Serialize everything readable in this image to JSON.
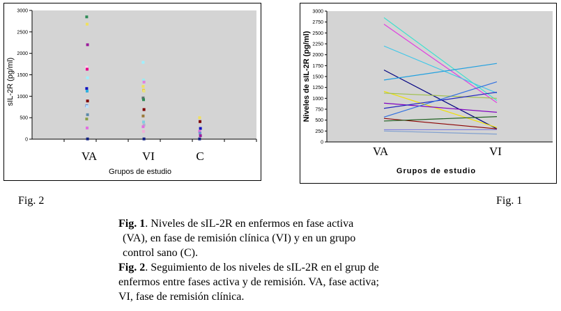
{
  "left_chart": {
    "ylabel": "sIL-2R (pg/ml)",
    "xlabel": "Grupos de estudio",
    "yticks": [
      "0",
      "500",
      "1000",
      "1500",
      "2000",
      "2500",
      "3000"
    ],
    "categories": [
      "VA",
      "VI",
      "C"
    ]
  },
  "right_chart": {
    "ylabel": "Niveles de sIL-2R (pg/ml)",
    "xlabel": "Grupos de estudio",
    "yticks": [
      "0",
      "250",
      "500",
      "750",
      "1000",
      "1250",
      "1500",
      "1750",
      "2000",
      "2250",
      "2500",
      "2750",
      "3000"
    ],
    "categories": [
      "VA",
      "VI"
    ]
  },
  "labels": {
    "fig2": "Fig. 2",
    "fig1": "Fig. 1"
  },
  "caption": {
    "fig1_bold": "Fig. 1",
    "fig1_line1": ". Niveles de sIL-2R en enfermos en fase activa",
    "fig1_line2": "(VA), en fase de remisión clínica (VI) y en un grupo",
    "fig1_line3": "control sano (C).",
    "fig2_bold": "Fig. 2",
    "fig2_line1": ". Seguimiento de los niveles de sIL-2R en el grup de",
    "fig2_line2": "enfermos entre fases activa y de remisión. VA, fase activa;",
    "fig2_line3": "VI, fase de remisión clínica."
  },
  "chart_data": [
    {
      "type": "scatter",
      "categories": [
        "VA",
        "VI",
        "C"
      ],
      "ylim": [
        0,
        3000
      ],
      "ylabel": "sIL-2R (pg/ml)",
      "xlabel": "Grupos de estudio",
      "series": [
        {
          "category": "VA",
          "color": "#2e8b57",
          "values": [
            2850
          ]
        },
        {
          "category": "VA",
          "color": "#f0e060",
          "values": [
            2680
          ]
        },
        {
          "category": "VA",
          "color": "#9b1c9b",
          "values": [
            2200
          ]
        },
        {
          "category": "VA",
          "color": "#ffd0f0",
          "values": [
            1680
          ]
        },
        {
          "category": "VA",
          "color": "#e8008a",
          "values": [
            1630
          ]
        },
        {
          "category": "VA",
          "color": "#9ff0ff",
          "values": [
            1430
          ]
        },
        {
          "category": "VA",
          "color": "#1010c0",
          "values": [
            1180
          ]
        },
        {
          "category": "VA",
          "color": "#30b0e0",
          "values": [
            1120
          ]
        },
        {
          "category": "VA",
          "color": "#800000",
          "values": [
            890
          ]
        },
        {
          "category": "VA",
          "color": "#7090d0",
          "values": [
            780
          ]
        },
        {
          "category": "VA",
          "color": "#b8e0ff",
          "values": [
            760
          ]
        },
        {
          "category": "VA",
          "color": "#5c8aa8",
          "values": [
            570
          ]
        },
        {
          "category": "VA",
          "color": "#8aa04a",
          "values": [
            470
          ]
        },
        {
          "category": "VA",
          "color": "#e070e0",
          "values": [
            260
          ]
        },
        {
          "category": "VA",
          "color": "#102080",
          "values": [
            5
          ]
        },
        {
          "category": "VI",
          "color": "#9ff0ff",
          "values": [
            1790
          ]
        },
        {
          "category": "VI",
          "color": "#a0e8f0",
          "values": [
            1380
          ]
        },
        {
          "category": "VI",
          "color": "#e080e0",
          "values": [
            1330
          ]
        },
        {
          "category": "VI",
          "color": "#f0e060",
          "values": [
            1230
          ]
        },
        {
          "category": "VI",
          "color": "#f0c830",
          "values": [
            1140
          ]
        },
        {
          "category": "VI",
          "color": "#e8e080",
          "values": [
            1120
          ]
        },
        {
          "category": "VI",
          "color": "#607070",
          "values": [
            960
          ]
        },
        {
          "category": "VI",
          "color": "#2e8b57",
          "values": [
            920
          ]
        },
        {
          "category": "VI",
          "color": "#800000",
          "values": [
            690
          ]
        },
        {
          "category": "VI",
          "color": "#9b7a3a",
          "values": [
            540
          ]
        },
        {
          "category": "VI",
          "color": "#80d0e0",
          "values": [
            400
          ]
        },
        {
          "category": "VI",
          "color": "#b0b0d0",
          "values": [
            330
          ]
        },
        {
          "category": "VI",
          "color": "#e070e0",
          "values": [
            290
          ]
        },
        {
          "category": "VI",
          "color": "#f0b0d8",
          "values": [
            180
          ]
        },
        {
          "category": "VI",
          "color": "#102080",
          "values": [
            5
          ]
        },
        {
          "category": "C",
          "color": "#f0e060",
          "values": [
            500
          ]
        },
        {
          "category": "C",
          "color": "#800000",
          "values": [
            410
          ]
        },
        {
          "category": "C",
          "color": "#1010c0",
          "values": [
            250
          ]
        },
        {
          "category": "C",
          "color": "#e070e0",
          "values": [
            180
          ]
        },
        {
          "category": "C",
          "color": "#7090d0",
          "values": [
            140
          ]
        },
        {
          "category": "C",
          "color": "#9b1c9b",
          "values": [
            80
          ]
        },
        {
          "category": "C",
          "color": "#102080",
          "values": [
            5
          ]
        }
      ]
    },
    {
      "type": "line",
      "categories": [
        "VA",
        "VI"
      ],
      "ylim": [
        0,
        3000
      ],
      "ylabel": "Niveles de sIL-2R (pg/ml)",
      "xlabel": "Grupos de estudio",
      "series": [
        {
          "color": "#40e0d0",
          "values": [
            2850,
            950
          ]
        },
        {
          "color": "#e040e0",
          "values": [
            2700,
            900
          ]
        },
        {
          "color": "#40c8e8",
          "values": [
            2200,
            1120
          ]
        },
        {
          "color": "#000080",
          "values": [
            1650,
            300
          ]
        },
        {
          "color": "#20a0e0",
          "values": [
            1420,
            1800
          ]
        },
        {
          "color": "#f0e000",
          "values": [
            1160,
            330
          ]
        },
        {
          "color": "#a0c050",
          "values": [
            1120,
            1000
          ]
        },
        {
          "color": "#8000c0",
          "values": [
            890,
            680
          ]
        },
        {
          "color": "#2020c0",
          "values": [
            770,
            1140
          ]
        },
        {
          "color": "#3070e0",
          "values": [
            570,
            1380
          ]
        },
        {
          "color": "#8b0000",
          "values": [
            540,
            300
          ]
        },
        {
          "color": "#206020",
          "values": [
            480,
            580
          ]
        },
        {
          "color": "#8080e0",
          "values": [
            280,
            280
          ]
        },
        {
          "color": "#80a0d0",
          "values": [
            250,
            180
          ]
        }
      ]
    }
  ]
}
